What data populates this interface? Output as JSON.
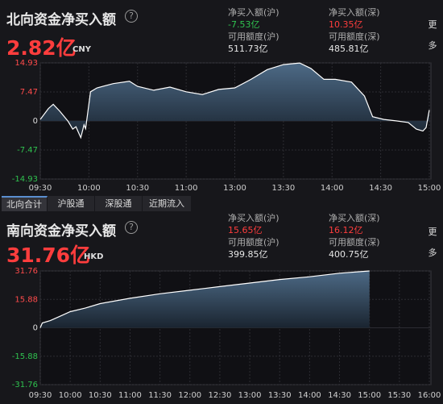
{
  "north": {
    "title": "北向资金净买入额",
    "amount": "2.82亿",
    "currency": "CNY",
    "stats": [
      {
        "label": "净买入额(沪)",
        "value": "-7.53亿",
        "color": "#2fc24f"
      },
      {
        "label": "净买入额(深)",
        "value": "10.35亿",
        "color": "#ff3d3d"
      },
      {
        "label": "可用额度(沪)",
        "value": "511.73亿",
        "color": "#e6e6e6"
      },
      {
        "label": "可用额度(深)",
        "value": "485.81亿",
        "color": "#e6e6e6"
      }
    ],
    "more": "更多"
  },
  "tabs": [
    "北向合计",
    "沪股通",
    "深股通",
    "近期流入"
  ],
  "south": {
    "title": "南向资金净买入额",
    "amount": "31.76亿",
    "currency": "HKD",
    "stats": [
      {
        "label": "净买入额(沪)",
        "value": "15.65亿",
        "color": "#ff3d3d"
      },
      {
        "label": "净买入额(深)",
        "value": "16.12亿",
        "color": "#ff3d3d"
      },
      {
        "label": "可用额度(沪)",
        "value": "399.85亿",
        "color": "#e6e6e6"
      },
      {
        "label": "可用额度(深)",
        "value": "400.75亿",
        "color": "#e6e6e6"
      }
    ],
    "more": "更多"
  },
  "chart_data": [
    {
      "type": "area",
      "color": "#ffffff",
      "x": [
        0,
        5,
        8,
        12,
        17,
        20,
        22,
        25,
        27,
        28,
        31,
        35,
        45,
        55,
        60,
        70,
        80,
        90,
        100,
        110,
        120,
        130,
        140,
        150,
        160,
        167,
        175,
        182,
        192,
        200,
        205,
        212,
        220,
        227,
        232,
        236,
        238,
        240
      ],
      "values": [
        0.4,
        3.2,
        4.3,
        2.5,
        0,
        -2.1,
        -1.5,
        -4.3,
        -1,
        -2,
        7.5,
        8.5,
        9.6,
        10.2,
        8.9,
        7.9,
        8.7,
        7.5,
        6.8,
        8.1,
        8.5,
        10.7,
        13.2,
        14.5,
        14.9,
        13.5,
        10.7,
        10.7,
        10,
        6.4,
        1.1,
        0.4,
        0,
        -0.4,
        -2.1,
        -2.6,
        -1.7,
        2.82
      ],
      "xlim": [
        0,
        240
      ],
      "xticks": [
        {
          "value": 0,
          "label": "09:30"
        },
        {
          "value": 30,
          "label": "10:00"
        },
        {
          "value": 60,
          "label": "10:30"
        },
        {
          "value": 90,
          "label": "11:00"
        },
        {
          "value": 120,
          "label": "13:00"
        },
        {
          "value": 150,
          "label": "13:30"
        },
        {
          "value": 180,
          "label": "14:00"
        },
        {
          "value": 210,
          "label": "14:30"
        },
        {
          "value": 240,
          "label": "15:00"
        }
      ],
      "ylim": [
        -14.93,
        14.93
      ],
      "yticks": [
        14.93,
        7.47,
        0,
        -7.47,
        -14.93
      ],
      "grid": true
    },
    {
      "type": "area",
      "color": "#ffffff",
      "x": [
        0,
        2,
        10,
        20,
        30,
        45,
        60,
        90,
        120,
        150,
        180,
        210,
        240,
        270,
        300,
        330
      ],
      "values": [
        0,
        2.7,
        4,
        6.5,
        9,
        11,
        13.5,
        16.5,
        19,
        21,
        23,
        25,
        27,
        28.5,
        30.5,
        31.76
      ],
      "xlim": [
        0,
        390
      ],
      "xticks": [
        {
          "value": 0,
          "label": "09:30"
        },
        {
          "value": 30,
          "label": "10:00"
        },
        {
          "value": 60,
          "label": "10:30"
        },
        {
          "value": 90,
          "label": "11:00"
        },
        {
          "value": 120,
          "label": "11:30"
        },
        {
          "value": 150,
          "label": "12:00"
        },
        {
          "value": 180,
          "label": "12:30"
        },
        {
          "value": 210,
          "label": "13:00"
        },
        {
          "value": 240,
          "label": "13:30"
        },
        {
          "value": 270,
          "label": "14:00"
        },
        {
          "value": 300,
          "label": "14:30"
        },
        {
          "value": 330,
          "label": "15:00"
        },
        {
          "value": 360,
          "label": "15:30"
        },
        {
          "value": 390,
          "label": "16:00"
        }
      ],
      "ylim": [
        -31.76,
        31.76
      ],
      "yticks": [
        31.76,
        15.88,
        0,
        -15.88,
        -31.76
      ],
      "grid": true
    }
  ]
}
